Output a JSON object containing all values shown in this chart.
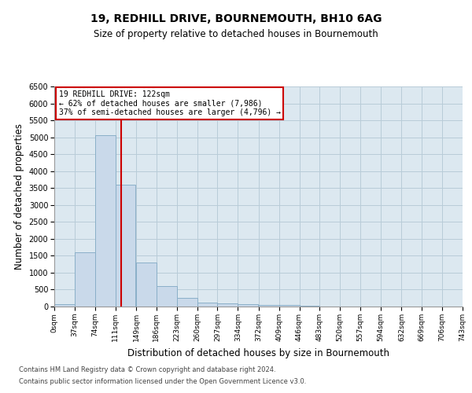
{
  "title1": "19, REDHILL DRIVE, BOURNEMOUTH, BH10 6AG",
  "title2": "Size of property relative to detached houses in Bournemouth",
  "xlabel": "Distribution of detached houses by size in Bournemouth",
  "ylabel": "Number of detached properties",
  "bin_edges": [
    0,
    37,
    74,
    111,
    149,
    186,
    223,
    260,
    297,
    334,
    372,
    409,
    446,
    483,
    520,
    557,
    594,
    632,
    669,
    706,
    743
  ],
  "bar_heights": [
    75,
    1600,
    5050,
    3600,
    1300,
    600,
    250,
    125,
    100,
    75,
    55,
    40,
    20,
    10,
    8,
    5,
    3,
    2,
    1,
    1
  ],
  "bar_color": "#c9d9ea",
  "bar_edgecolor": "#8aafc8",
  "property_size": 122,
  "red_line_color": "#cc0000",
  "annotation_line1": "19 REDHILL DRIVE: 122sqm",
  "annotation_line2": "← 62% of detached houses are smaller (7,986)",
  "annotation_line3": "37% of semi-detached houses are larger (4,796) →",
  "annotation_box_color": "#ffffff",
  "annotation_border_color": "#cc0000",
  "ylim": [
    0,
    6500
  ],
  "xlim": [
    0,
    743
  ],
  "grid_color": "#b8ccd8",
  "background_color": "#dce8f0",
  "footer1": "Contains HM Land Registry data © Crown copyright and database right 2024.",
  "footer2": "Contains public sector information licensed under the Open Government Licence v3.0."
}
